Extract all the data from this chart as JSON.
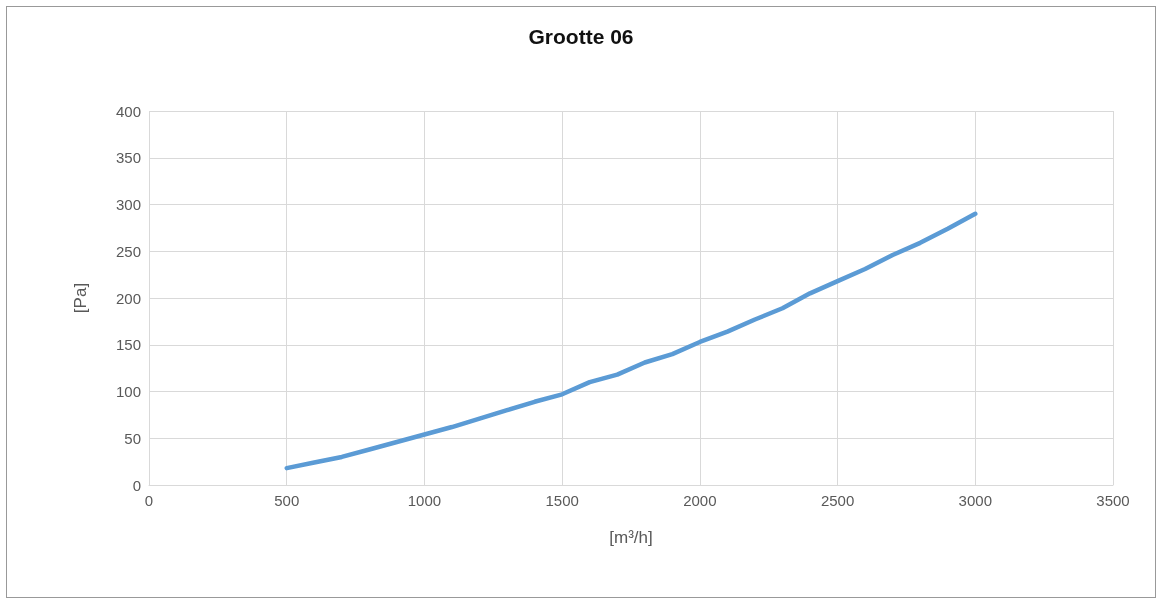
{
  "chart_data": {
    "type": "line",
    "title": "Grootte 06",
    "xlabel": "[m³/h]",
    "ylabel": "[Pa]",
    "x": [
      500,
      600,
      700,
      800,
      900,
      1000,
      1100,
      1200,
      1300,
      1400,
      1500,
      1600,
      1700,
      1800,
      1900,
      2000,
      2100,
      2200,
      2300,
      2400,
      2500,
      2600,
      2700,
      2800,
      2900,
      3000
    ],
    "series": [
      {
        "color": "#5b9bd5",
        "values": [
          18,
          24,
          30,
          38,
          46,
          54,
          62,
          71,
          80,
          89,
          97,
          110,
          118,
          131,
          140,
          153,
          164,
          177,
          189,
          205,
          218,
          231,
          246,
          259,
          274,
          290
        ]
      }
    ],
    "xlim": [
      0,
      3500
    ],
    "xticks": [
      0,
      500,
      1000,
      1500,
      2000,
      2500,
      3000,
      3500
    ],
    "ylim": [
      0,
      400
    ],
    "yticks": [
      0,
      50,
      100,
      150,
      200,
      250,
      300,
      350,
      400
    ],
    "grid": true,
    "marker": "none",
    "line_style": "solid"
  }
}
